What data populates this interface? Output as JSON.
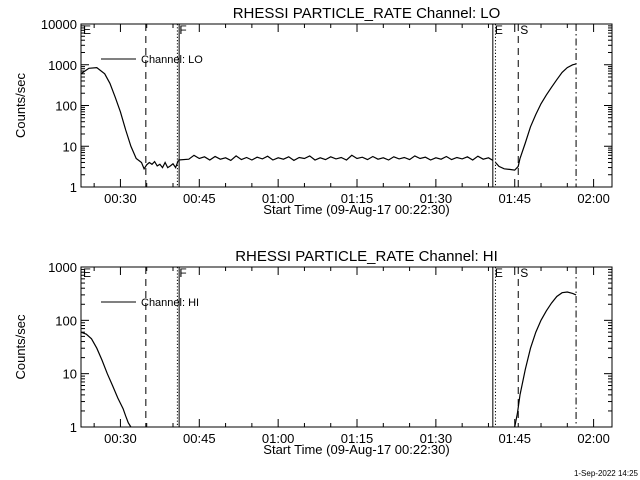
{
  "footer_stamp": "1-Sep-2022 14:25",
  "chart_data": [
    {
      "type": "line",
      "title": "RHESSI PARTICLE_RATE Channel: LO",
      "xlabel": "Start Time (09-Aug-17 00:22:30)",
      "ylabel": "Counts/sec",
      "y_scale": "log",
      "ylim": [
        1,
        10000
      ],
      "y_ticks": [
        "1",
        "10",
        "100",
        "1000",
        "10000"
      ],
      "xlim": [
        "00:22:30",
        "02:03:30"
      ],
      "x_ticks": [
        "00:30",
        "00:45",
        "01:00",
        "01:15",
        "01:30",
        "01:45",
        "02:00"
      ],
      "legend": {
        "label": "Channel: LO",
        "placement": "top-left"
      },
      "markers": [
        {
          "label": "E",
          "time": "00:22:30",
          "style": "solid"
        },
        {
          "label": "",
          "time": "00:34:50",
          "style": "dashed"
        },
        {
          "label": "F",
          "time": "00:40:50",
          "style": "dotted"
        },
        {
          "label": "",
          "time": "00:41:10",
          "style": "solid"
        },
        {
          "label": "E",
          "time": "01:40:50",
          "style": "solid"
        },
        {
          "label": "",
          "time": "01:41:20",
          "style": "dotted"
        },
        {
          "label": "S",
          "time": "01:45:40",
          "style": "dashed"
        },
        {
          "label": "",
          "time": "01:56:40",
          "style": "dashdot"
        }
      ],
      "series": [
        {
          "name": "Channel: LO",
          "segments": [
            {
              "x": [
                "00:22:30",
                "00:24:00",
                "00:25:30",
                "00:27:00",
                "00:28:00",
                "00:29:00",
                "00:30:00",
                "00:31:00",
                "00:32:00",
                "00:33:00",
                "00:34:00",
                "00:34:30",
                "00:35:00",
                "00:35:30",
                "00:36:00",
                "00:36:30",
                "00:37:00",
                "00:37:30",
                "00:38:00",
                "00:38:30",
                "00:39:00",
                "00:39:30",
                "00:40:00",
                "00:40:30",
                "00:41:00"
              ],
              "y": [
                600,
                820,
                850,
                600,
                350,
                160,
                70,
                25,
                10,
                5,
                4,
                2.8,
                3.5,
                4,
                3.6,
                4.2,
                3.3,
                3.6,
                3.0,
                4.0,
                3.0,
                3.3,
                3.7,
                3.0,
                4.5
              ]
            },
            {
              "x": [
                "00:41:00",
                "00:43:00",
                "00:44:00",
                "00:45:00",
                "00:46:00",
                "00:47:00",
                "00:48:00",
                "00:49:00",
                "00:50:00",
                "00:51:00",
                "00:52:00",
                "00:53:00",
                "00:54:00",
                "00:55:00",
                "00:56:00",
                "00:57:00",
                "00:58:00",
                "00:59:00",
                "01:00:00",
                "01:01:00",
                "01:02:00",
                "01:03:00",
                "01:04:00",
                "01:05:00",
                "01:06:00",
                "01:07:00",
                "01:08:00",
                "01:09:00",
                "01:10:00",
                "01:11:00",
                "01:12:00",
                "01:13:00",
                "01:14:00",
                "01:15:00",
                "01:16:00",
                "01:17:00",
                "01:18:00",
                "01:19:00",
                "01:20:00",
                "01:21:00",
                "01:22:00",
                "01:23:00",
                "01:24:00",
                "01:25:00",
                "01:26:00",
                "01:27:00",
                "01:28:00",
                "01:29:00",
                "01:30:00",
                "01:31:00",
                "01:32:00",
                "01:33:00",
                "01:34:00",
                "01:35:00",
                "01:36:00",
                "01:37:00",
                "01:38:00",
                "01:39:00",
                "01:40:00",
                "01:40:50"
              ],
              "y": [
                4.6,
                4.8,
                6.0,
                5.0,
                5.5,
                4.6,
                5.6,
                4.8,
                5.2,
                4.5,
                5.8,
                4.7,
                5.3,
                4.6,
                5.4,
                4.9,
                5.7,
                4.6,
                5.2,
                4.8,
                5.5,
                4.5,
                5.3,
                5.0,
                5.8,
                4.6,
                5.2,
                4.7,
                5.5,
                4.9,
                5.3,
                4.6,
                6.0,
                5.0,
                5.4,
                4.7,
                5.6,
                4.8,
                5.2,
                4.6,
                5.5,
                4.9,
                5.3,
                4.7,
                5.8,
                5.0,
                5.4,
                4.6,
                5.2,
                4.8,
                5.6,
                4.7,
                5.3,
                4.9,
                5.5,
                4.6,
                5.7,
                4.8,
                5.2,
                4.5
              ]
            },
            {
              "x": [
                "01:41:20",
                "01:42:00",
                "01:43:00",
                "01:44:00",
                "01:45:00",
                "01:45:40",
                "01:46:00",
                "01:47:00",
                "01:48:00",
                "01:49:00",
                "01:50:00",
                "01:51:00",
                "01:52:00",
                "01:53:00",
                "01:54:00",
                "01:55:00",
                "01:56:00",
                "01:56:40"
              ],
              "y": [
                4.0,
                3.2,
                2.8,
                2.7,
                2.6,
                3.2,
                5.0,
                12,
                30,
                60,
                110,
                180,
                280,
                430,
                650,
                850,
                1000,
                1050
              ]
            }
          ]
        }
      ]
    },
    {
      "type": "line",
      "title": "RHESSI PARTICLE_RATE Channel: HI",
      "xlabel": "Start Time (09-Aug-17 00:22:30)",
      "ylabel": "Counts/sec",
      "y_scale": "log",
      "ylim": [
        1,
        1000
      ],
      "y_ticks": [
        "1",
        "10",
        "100",
        "1000"
      ],
      "xlim": [
        "00:22:30",
        "02:03:30"
      ],
      "x_ticks": [
        "00:30",
        "00:45",
        "01:00",
        "01:15",
        "01:30",
        "01:45",
        "02:00"
      ],
      "legend": {
        "label": "Channel: HI",
        "placement": "top-left"
      },
      "markers": [
        {
          "label": "E",
          "time": "00:22:30",
          "style": "solid"
        },
        {
          "label": "",
          "time": "00:34:50",
          "style": "dashed"
        },
        {
          "label": "F",
          "time": "00:40:50",
          "style": "dotted"
        },
        {
          "label": "",
          "time": "00:41:10",
          "style": "solid"
        },
        {
          "label": "E",
          "time": "01:40:50",
          "style": "solid"
        },
        {
          "label": "",
          "time": "01:41:20",
          "style": "dotted"
        },
        {
          "label": "S",
          "time": "01:45:40",
          "style": "dashed"
        },
        {
          "label": "",
          "time": "01:56:40",
          "style": "dashdot"
        }
      ],
      "series": [
        {
          "name": "Channel: HI",
          "segments": [
            {
              "x": [
                "00:22:30",
                "00:23:30",
                "00:24:30",
                "00:25:30",
                "00:26:30",
                "00:27:30",
                "00:28:30",
                "00:29:30",
                "00:30:30",
                "00:31:00",
                "00:31:30",
                "00:32:00"
              ],
              "y": [
                60,
                55,
                45,
                30,
                18,
                10,
                6,
                3.5,
                2.2,
                1.6,
                1.2,
                1.0
              ]
            },
            {
              "x": [
                "01:45:00",
                "01:45:30",
                "01:46:00",
                "01:47:00",
                "01:48:00",
                "01:49:00",
                "01:50:00",
                "01:51:00",
                "01:52:00",
                "01:53:00",
                "01:54:00",
                "01:55:00",
                "01:56:00",
                "01:56:40"
              ],
              "y": [
                1.0,
                1.8,
                4,
                12,
                30,
                60,
                100,
                150,
                210,
                280,
                330,
                340,
                320,
                300
              ]
            }
          ]
        }
      ]
    }
  ]
}
